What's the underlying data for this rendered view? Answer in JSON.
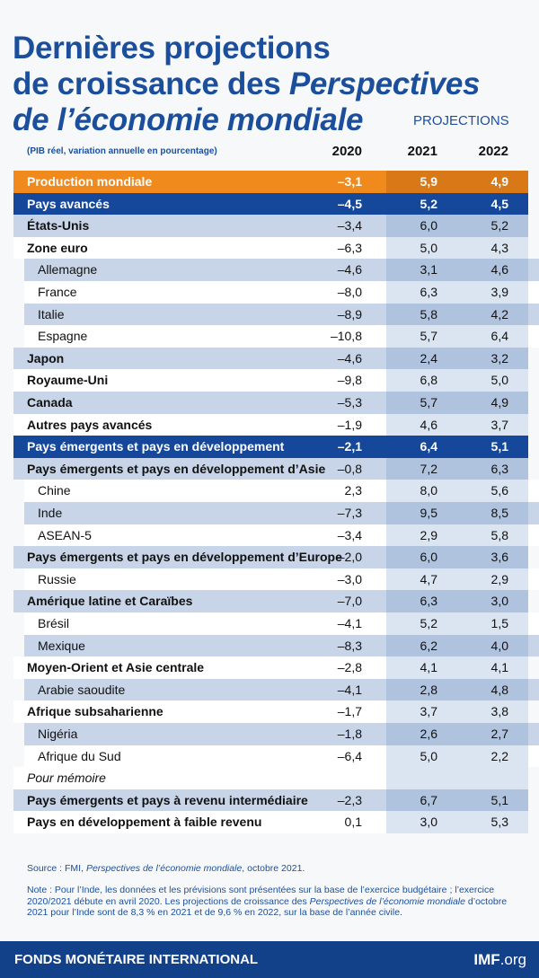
{
  "header": {
    "title_line1": "Dernières projections",
    "title_line2a": "de croissance des ",
    "title_line2b": "Perspectives",
    "title_line3": "de l’économie mondiale",
    "tag": "PROJECTIONS"
  },
  "table": {
    "columns": [
      "(PIB réel, variation annuelle en pourcentage)",
      "2020",
      "2021",
      "2022"
    ],
    "rows": [
      [
        "Production mondiale",
        "–3,1",
        "5,9",
        "4,9"
      ],
      [
        "Pays avancés",
        "–4,5",
        "5,2",
        "4,5"
      ],
      [
        "États-Unis",
        "–3,4",
        "6,0",
        "5,2"
      ],
      [
        "Zone euro",
        "–6,3",
        "5,0",
        "4,3"
      ],
      [
        "Allemagne",
        "–4,6",
        "3,1",
        "4,6"
      ],
      [
        "France",
        "–8,0",
        "6,3",
        "3,9"
      ],
      [
        "Italie",
        "–8,9",
        "5,8",
        "4,2"
      ],
      [
        "Espagne",
        "–10,8",
        "5,7",
        "6,4"
      ],
      [
        "Japon",
        "–4,6",
        "2,4",
        "3,2"
      ],
      [
        "Royaume-Uni",
        "–9,8",
        "6,8",
        "5,0"
      ],
      [
        "Canada",
        "–5,3",
        "5,7",
        "4,9"
      ],
      [
        "Autres pays avancés",
        "–1,9",
        "4,6",
        "3,7"
      ],
      [
        "Pays émergents et pays en développement",
        "–2,1",
        "6,4",
        "5,1"
      ],
      [
        "Pays émergents et pays en développement d’Asie",
        "–0,8",
        "7,2",
        "6,3"
      ],
      [
        "Chine",
        "2,3",
        "8,0",
        "5,6"
      ],
      [
        "Inde",
        "–7,3",
        "9,5",
        "8,5"
      ],
      [
        "ASEAN-5",
        "–3,4",
        "2,9",
        "5,8"
      ],
      [
        "Pays émergents et pays en développement d’Europe",
        "–2,0",
        "6,0",
        "3,6"
      ],
      [
        "Russie",
        "–3,0",
        "4,7",
        "2,9"
      ],
      [
        "Amérique latine et Caraïbes",
        "–7,0",
        "6,3",
        "3,0"
      ],
      [
        "Brésil",
        "–4,1",
        "5,2",
        "1,5"
      ],
      [
        "Mexique",
        "–8,3",
        "6,2",
        "4,0"
      ],
      [
        "Moyen-Orient et Asie centrale",
        "–2,8",
        "4,1",
        "4,1"
      ],
      [
        "Arabie saoudite",
        "–4,1",
        "2,8",
        "4,8"
      ],
      [
        "Afrique subsaharienne",
        "–1,7",
        "3,7",
        "3,8"
      ],
      [
        "Nigéria",
        "–1,8",
        "2,6",
        "2,7"
      ],
      [
        "Afrique du Sud",
        "–6,4",
        "5,0",
        "2,2"
      ],
      [
        "Pour mémoire"
      ],
      [
        "Pays émergents et pays à revenu intermédiaire",
        "–2,3",
        "6,7",
        "5,1"
      ],
      [
        "Pays en développement à faible revenu",
        "0,1",
        "3,0",
        "5,3"
      ]
    ]
  },
  "source": {
    "prefix": "Source : FMI, ",
    "italic": "Perspectives de l’économie mondiale",
    "suffix": ", octobre 2021."
  },
  "note": {
    "part1": "Note : Pour l’Inde, les données et les prévisions sont présentées sur la base de l’exercice budgétaire ; l’exercice 2020/2021 débute en avril 2020. Les projections de croissance des ",
    "italic": "Perspectives de l’économie mondiale",
    "part2": " d’octobre 2021 pour  l’Inde sont de 8,3 % en 2021 et de 9,6 % en 2022, sur la base de l’année civile."
  },
  "footer": {
    "org": "FONDS MONÉTAIRE INTERNATIONAL",
    "site_a": "IMF",
    "site_b": ".org"
  }
}
